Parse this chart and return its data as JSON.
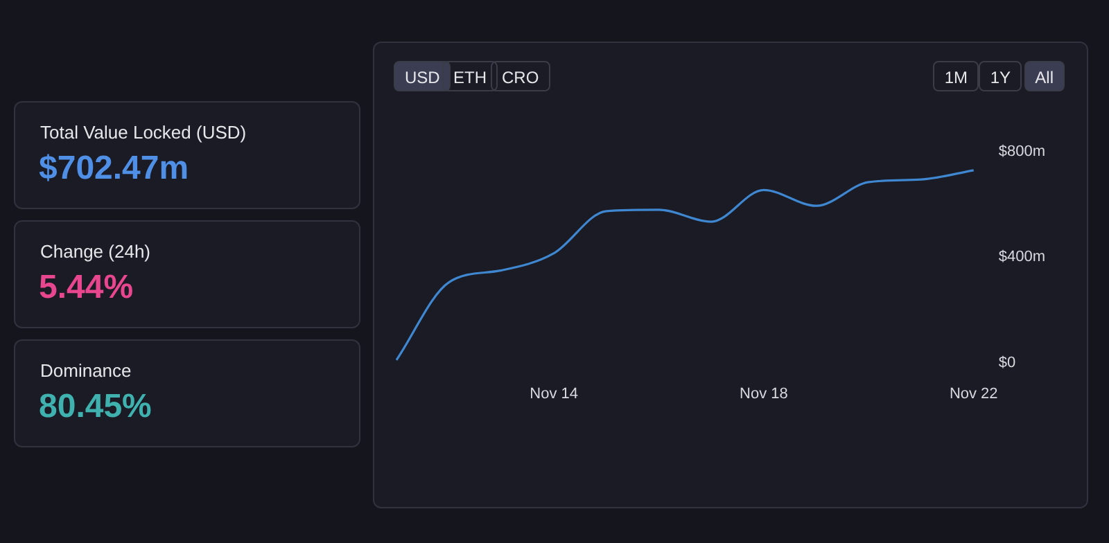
{
  "chart_data": [
    {
      "type": "other",
      "annotations": [
        "Total Value Locked (USD)",
        "$702.47m",
        "Change (24h)",
        "5.44%",
        "Dominance",
        "80.45%"
      ],
      "colors": [
        "#4f8fe6",
        "#e8468f",
        "#3fb2b0"
      ]
    },
    {
      "type": "line",
      "categories": [
        null,
        null,
        null,
        "Nov 14",
        null,
        null,
        null,
        "Nov 18",
        null,
        null,
        null,
        "Nov 22"
      ],
      "values": [
        10,
        305,
        350,
        415,
        575,
        580,
        535,
        655,
        595,
        685,
        695,
        730
      ],
      "color": "#3f87d0",
      "ylim": [
        0,
        800
      ],
      "yticks": [
        {
          "value": 0,
          "label": "$0"
        },
        {
          "value": 400,
          "label": "$400m"
        },
        {
          "value": 800,
          "label": "$800m"
        }
      ],
      "annotations": [
        "USD",
        "ETH",
        "CRO",
        "1M",
        "1Y",
        "All"
      ]
    }
  ]
}
